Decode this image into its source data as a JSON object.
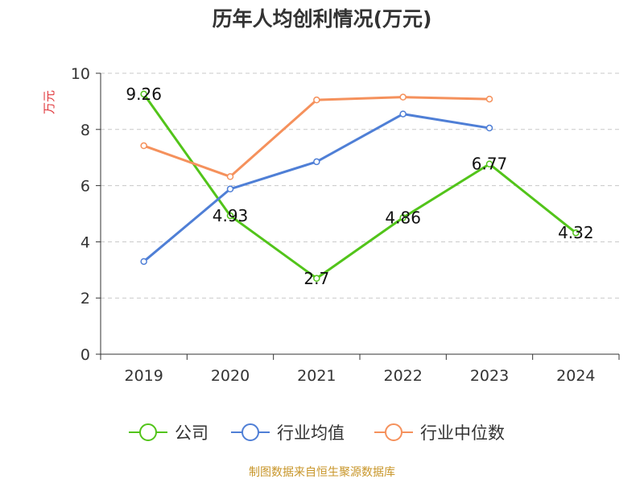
{
  "source": "制图数据来自恒生聚源数据库",
  "colors": {
    "axis": "#333333",
    "grid": "#c8c8c8",
    "ylabel": "#e0393e",
    "source": "#c8962a"
  },
  "chart_data": {
    "type": "line",
    "title": "历年人均创利情况(万元)",
    "ylabel": "万元",
    "xlabel": "",
    "categories": [
      "2019",
      "2020",
      "2021",
      "2022",
      "2023",
      "2024"
    ],
    "ylim": [
      0,
      10
    ],
    "yticks": [
      0,
      2,
      4,
      6,
      8,
      10
    ],
    "grid": true,
    "legend_position": "bottom",
    "series": [
      {
        "name": "公司",
        "color": "#52c41a",
        "values": [
          9.26,
          4.93,
          2.7,
          4.86,
          6.77,
          4.32
        ],
        "labels": [
          "9.26",
          "4.93",
          "2.7",
          "4.86",
          "6.77",
          "4.32"
        ]
      },
      {
        "name": "行业均值",
        "color": "#4f7fd6",
        "values": [
          3.3,
          5.88,
          6.85,
          8.55,
          8.05,
          null
        ]
      },
      {
        "name": "行业中位数",
        "color": "#f5915c",
        "values": [
          7.42,
          6.32,
          9.05,
          9.15,
          9.08,
          null
        ]
      }
    ]
  }
}
